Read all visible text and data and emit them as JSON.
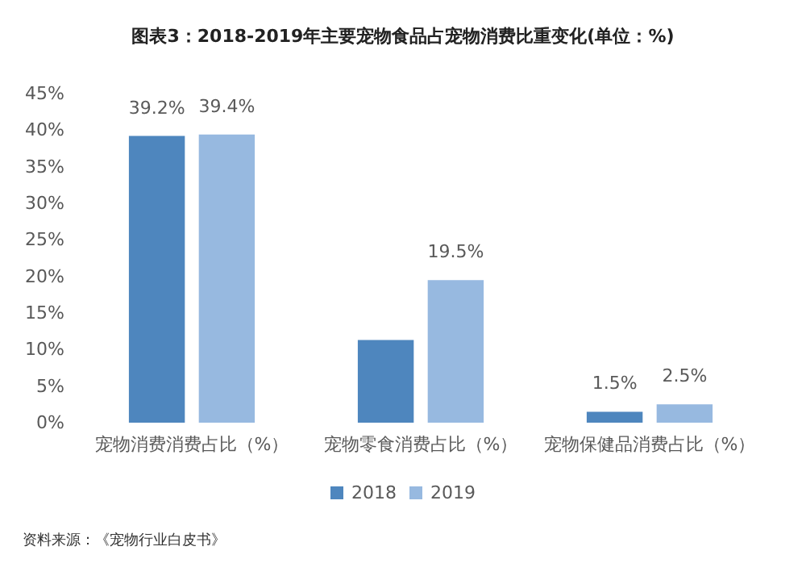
{
  "chart_data": {
    "type": "bar",
    "title": "图表3：2018-2019年主要宠物食品占宠物消费比重变化(单位：%)",
    "categories": [
      "宠物消费消费占比（%）",
      "宠物零食消费占比（%）",
      "宠物保健品消费占比（%）"
    ],
    "series": [
      {
        "name": "2018",
        "color": "#4e86be",
        "values": [
          39.2,
          11.3,
          1.5
        ],
        "value_labels": [
          "39.2%",
          null,
          "1.5%"
        ]
      },
      {
        "name": "2019",
        "color": "#97b9e0",
        "values": [
          39.4,
          19.5,
          2.5
        ],
        "value_labels": [
          "39.4%",
          "19.5%",
          "2.5%"
        ]
      }
    ],
    "ylim": [
      0,
      45
    ],
    "yticks": [
      {
        "value": 0,
        "label": "0%"
      },
      {
        "value": 5,
        "label": "5%"
      },
      {
        "value": 10,
        "label": "10%"
      },
      {
        "value": 15,
        "label": "15%"
      },
      {
        "value": 20,
        "label": "20%"
      },
      {
        "value": 25,
        "label": "25%"
      },
      {
        "value": 30,
        "label": "30%"
      },
      {
        "value": 35,
        "label": "35%"
      },
      {
        "value": 40,
        "label": "40%"
      },
      {
        "value": 45,
        "label": "45%"
      }
    ],
    "grid": false,
    "legend": "bottom",
    "annotations": [
      "资料来源：《宠物行业白皮书》"
    ]
  }
}
